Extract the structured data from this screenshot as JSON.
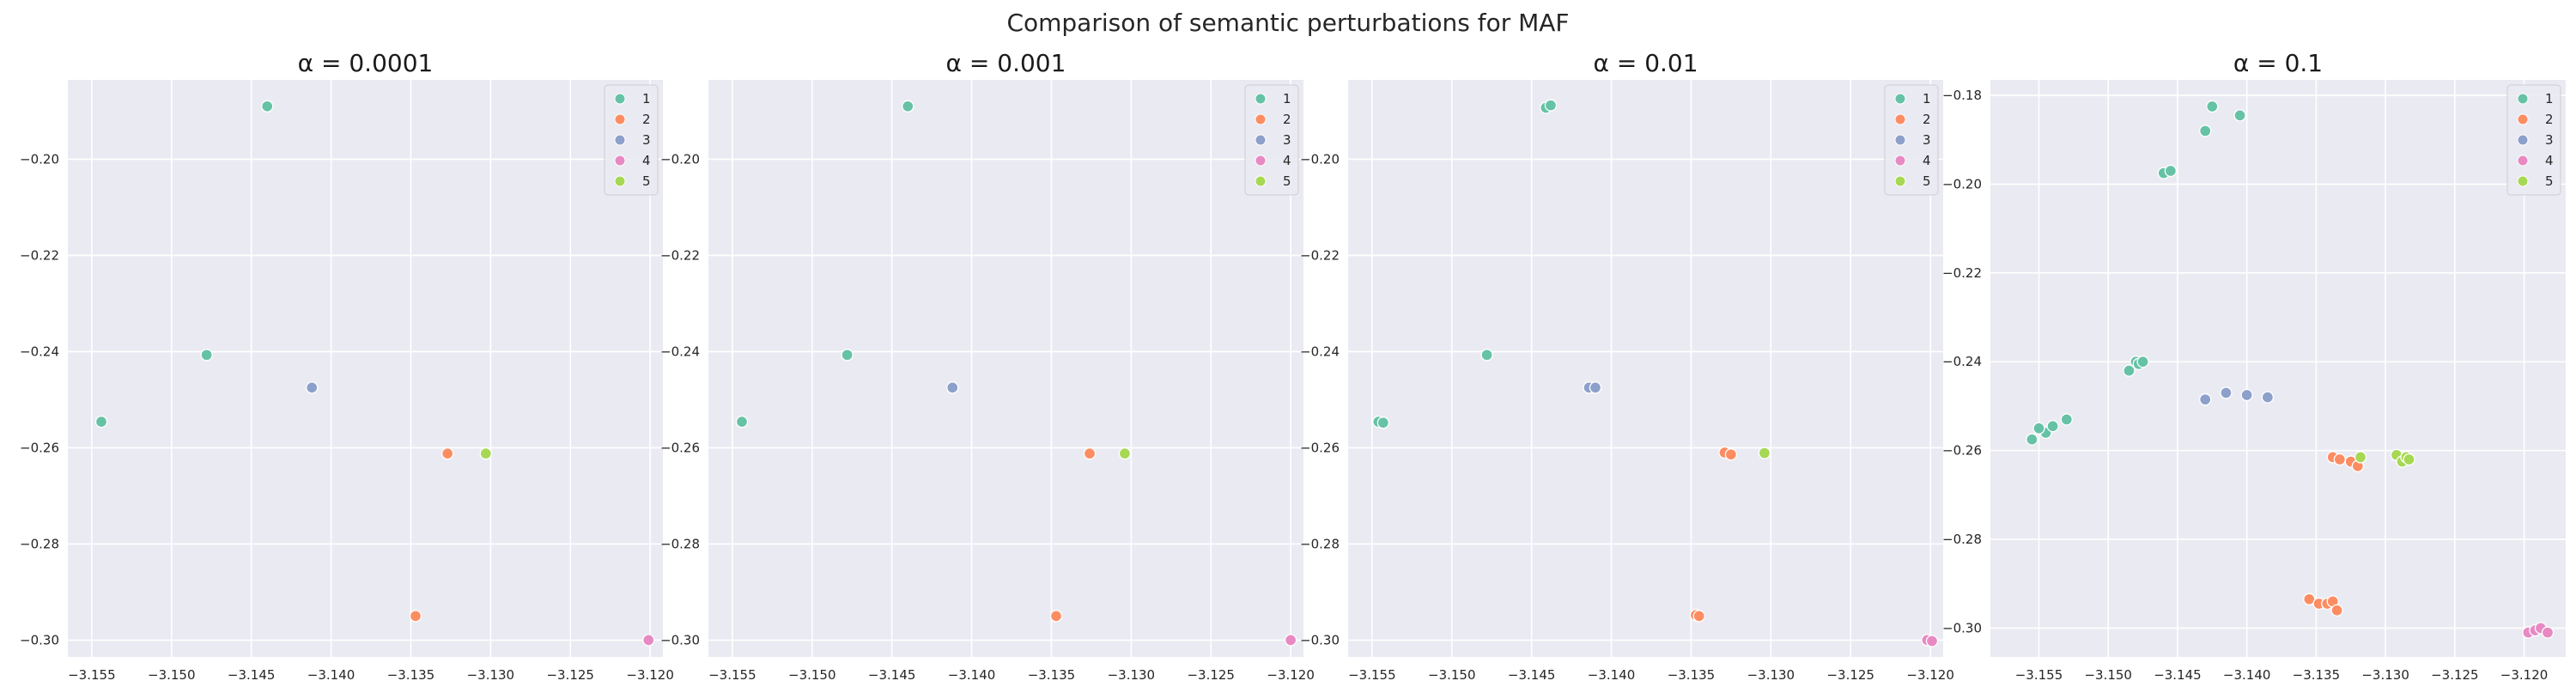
{
  "figure": {
    "title": "Comparison of semantic perturbations for MAF"
  },
  "colors": {
    "background": "#eaeaf2",
    "grid": "#ffffff",
    "1": "#66c2a5",
    "2": "#fc8d62",
    "3": "#8da0cb",
    "4": "#e78ac3",
    "5": "#a6d854"
  },
  "legend": {
    "labels": [
      "1",
      "2",
      "3",
      "4",
      "5"
    ],
    "placement": "upper right"
  },
  "chart_data": [
    {
      "type": "scatter",
      "title": "α = 0.0001",
      "xlabel": "",
      "ylabel": "",
      "xlim": [
        -3.1565,
        -3.1192
      ],
      "ylim": [
        -0.3035,
        -0.1835
      ],
      "xticks": [
        -3.155,
        -3.15,
        -3.145,
        -3.14,
        -3.135,
        -3.13,
        -3.125,
        -3.12
      ],
      "xtick_labels": [
        "−3.155",
        "−3.150",
        "−3.145",
        "−3.140",
        "−3.135",
        "−3.130",
        "−3.125",
        "−3.120"
      ],
      "yticks": [
        -0.3,
        -0.28,
        -0.26,
        -0.24,
        -0.22,
        -0.2
      ],
      "ytick_labels": [
        "−0.30",
        "−0.28",
        "−0.26",
        "−0.24",
        "−0.22",
        "−0.20"
      ],
      "series": [
        {
          "name": "1",
          "x": [
            -3.144,
            -3.1478,
            -3.1544
          ],
          "y": [
            -0.189,
            -0.2407,
            -0.2546
          ]
        },
        {
          "name": "2",
          "x": [
            -3.1327,
            -3.1347
          ],
          "y": [
            -0.2612,
            -0.295
          ]
        },
        {
          "name": "3",
          "x": [
            -3.1412
          ],
          "y": [
            -0.2475
          ]
        },
        {
          "name": "4",
          "x": [
            -3.1201
          ],
          "y": [
            -0.3
          ]
        },
        {
          "name": "5",
          "x": [
            -3.1303
          ],
          "y": [
            -0.2612
          ]
        }
      ]
    },
    {
      "type": "scatter",
      "title": "α = 0.001",
      "xlabel": "",
      "ylabel": "",
      "xlim": [
        -3.1565,
        -3.1192
      ],
      "ylim": [
        -0.3035,
        -0.1835
      ],
      "xticks": [
        -3.155,
        -3.15,
        -3.145,
        -3.14,
        -3.135,
        -3.13,
        -3.125,
        -3.12
      ],
      "xtick_labels": [
        "−3.155",
        "−3.150",
        "−3.145",
        "−3.140",
        "−3.135",
        "−3.130",
        "−3.125",
        "−3.120"
      ],
      "yticks": [
        -0.3,
        -0.28,
        -0.26,
        -0.24,
        -0.22,
        -0.2
      ],
      "ytick_labels": [
        "−0.30",
        "−0.28",
        "−0.26",
        "−0.24",
        "−0.22",
        "−0.20"
      ],
      "series": [
        {
          "name": "1",
          "x": [
            -3.144,
            -3.1478,
            -3.1544
          ],
          "y": [
            -0.189,
            -0.2407,
            -0.2546
          ]
        },
        {
          "name": "2",
          "x": [
            -3.1326,
            -3.1347
          ],
          "y": [
            -0.2612,
            -0.295
          ]
        },
        {
          "name": "3",
          "x": [
            -3.1412
          ],
          "y": [
            -0.2475
          ]
        },
        {
          "name": "4",
          "x": [
            -3.12
          ],
          "y": [
            -0.3
          ]
        },
        {
          "name": "5",
          "x": [
            -3.1304
          ],
          "y": [
            -0.2612
          ]
        }
      ]
    },
    {
      "type": "scatter",
      "title": "α = 0.01",
      "xlabel": "",
      "ylabel": "",
      "xlim": [
        -3.1565,
        -3.1192
      ],
      "ylim": [
        -0.3035,
        -0.1835
      ],
      "xticks": [
        -3.155,
        -3.15,
        -3.145,
        -3.14,
        -3.135,
        -3.13,
        -3.125,
        -3.12
      ],
      "xtick_labels": [
        "−3.155",
        "−3.150",
        "−3.145",
        "−3.140",
        "−3.135",
        "−3.130",
        "−3.125",
        "−3.120"
      ],
      "yticks": [
        -0.3,
        -0.28,
        -0.26,
        -0.24,
        -0.22,
        -0.2
      ],
      "ytick_labels": [
        "−0.30",
        "−0.28",
        "−0.26",
        "−0.24",
        "−0.22",
        "−0.20"
      ],
      "series": [
        {
          "name": "1",
          "x": [
            -3.1441,
            -3.1438,
            -3.1478,
            -3.1546,
            -3.1543
          ],
          "y": [
            -0.1893,
            -0.1888,
            -0.2407,
            -0.2546,
            -0.2548
          ]
        },
        {
          "name": "2",
          "x": [
            -3.1329,
            -3.1325,
            -3.1347,
            -3.1345
          ],
          "y": [
            -0.261,
            -0.2614,
            -0.2948,
            -0.295
          ]
        },
        {
          "name": "3",
          "x": [
            -3.1414,
            -3.141
          ],
          "y": [
            -0.2475,
            -0.2475
          ]
        },
        {
          "name": "4",
          "x": [
            -3.1202,
            -3.1199
          ],
          "y": [
            -0.3,
            -0.3002
          ]
        },
        {
          "name": "5",
          "x": [
            -3.1304
          ],
          "y": [
            -0.2611
          ]
        }
      ]
    },
    {
      "type": "scatter",
      "title": "α = 0.1",
      "xlabel": "",
      "ylabel": "",
      "xlim": [
        -3.1585,
        -3.117
      ],
      "ylim": [
        -0.3065,
        -0.1765
      ],
      "xticks": [
        -3.155,
        -3.15,
        -3.145,
        -3.14,
        -3.135,
        -3.13,
        -3.125,
        -3.12
      ],
      "xtick_labels": [
        "−3.155",
        "−3.150",
        "−3.145",
        "−3.140",
        "−3.135",
        "−3.130",
        "−3.125",
        "−3.120"
      ],
      "yticks": [
        -0.3,
        -0.28,
        -0.26,
        -0.24,
        -0.22,
        -0.2,
        -0.18
      ],
      "ytick_labels": [
        "−0.30",
        "−0.28",
        "−0.26",
        "−0.24",
        "−0.22",
        "−0.20",
        "−0.18"
      ],
      "series": [
        {
          "name": "1",
          "x": [
            -3.1425,
            -3.143,
            -3.1405,
            -3.146,
            -3.1455,
            -3.148,
            -3.1485,
            -3.1478,
            -3.1475,
            -3.153,
            -3.1545,
            -3.1555,
            -3.154,
            -3.155
          ],
          "y": [
            -0.1825,
            -0.188,
            -0.1845,
            -0.1975,
            -0.197,
            -0.24,
            -0.242,
            -0.2405,
            -0.24,
            -0.253,
            -0.256,
            -0.2575,
            -0.2545,
            -0.255
          ]
        },
        {
          "name": "2",
          "x": [
            -3.1355,
            -3.1348,
            -3.1342,
            -3.1338,
            -3.1335,
            -3.1338,
            -3.1333,
            -3.1325,
            -3.132
          ],
          "y": [
            -0.2935,
            -0.2945,
            -0.2945,
            -0.294,
            -0.296,
            -0.2615,
            -0.262,
            -0.2625,
            -0.2635
          ]
        },
        {
          "name": "3",
          "x": [
            -3.143,
            -3.1415,
            -3.14,
            -3.1385
          ],
          "y": [
            -0.2485,
            -0.247,
            -0.2475,
            -0.248
          ]
        },
        {
          "name": "4",
          "x": [
            -3.1197,
            -3.1192,
            -3.1188,
            -3.1183
          ],
          "y": [
            -0.301,
            -0.3005,
            -0.3,
            -0.301
          ]
        },
        {
          "name": "5",
          "x": [
            -3.1318,
            -3.1292,
            -3.1288,
            -3.1285,
            -3.1283
          ],
          "y": [
            -0.2615,
            -0.261,
            -0.2625,
            -0.2615,
            -0.262
          ]
        }
      ]
    }
  ]
}
